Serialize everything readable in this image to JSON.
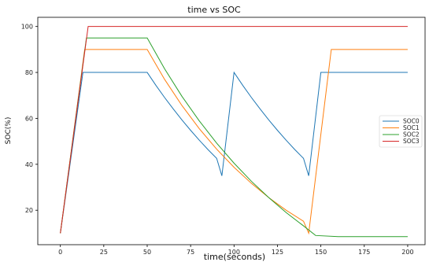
{
  "chart_data": {
    "type": "line",
    "title": "time vs SOC",
    "xlabel": "time(seconds)",
    "ylabel": "SOC(%)",
    "xlim": [
      -13,
      210
    ],
    "ylim": [
      5,
      104
    ],
    "x_ticks": [
      0,
      25,
      50,
      75,
      100,
      125,
      150,
      175,
      200
    ],
    "y_ticks": [
      20,
      40,
      60,
      80,
      100
    ],
    "grid": false,
    "legend_position": "center-right",
    "series": [
      {
        "name": "SOC0",
        "color": "#1f77b4",
        "points": [
          [
            0,
            10
          ],
          [
            13,
            80
          ],
          [
            50,
            80
          ],
          [
            55,
            74.4
          ],
          [
            60,
            69.1
          ],
          [
            65,
            64.1
          ],
          [
            70,
            59.3
          ],
          [
            75,
            54.8
          ],
          [
            80,
            50.5
          ],
          [
            85,
            46.4
          ],
          [
            90,
            42.6
          ],
          [
            93,
            35
          ],
          [
            100,
            80
          ],
          [
            105,
            74.4
          ],
          [
            110,
            69.1
          ],
          [
            115,
            64.1
          ],
          [
            120,
            59.3
          ],
          [
            125,
            54.8
          ],
          [
            130,
            50.5
          ],
          [
            135,
            46.4
          ],
          [
            140,
            42.6
          ],
          [
            143,
            35
          ],
          [
            150,
            80
          ],
          [
            200,
            80
          ]
        ]
      },
      {
        "name": "SOC1",
        "color": "#ff7f0e",
        "points": [
          [
            0,
            10
          ],
          [
            14,
            90
          ],
          [
            50,
            90
          ],
          [
            60,
            77
          ],
          [
            70,
            65.6
          ],
          [
            80,
            55.5
          ],
          [
            90,
            46.6
          ],
          [
            100,
            38.7
          ],
          [
            110,
            31.7
          ],
          [
            120,
            25.5
          ],
          [
            130,
            20
          ],
          [
            140,
            15.2
          ],
          [
            143,
            10
          ],
          [
            156,
            90
          ],
          [
            200,
            90
          ]
        ]
      },
      {
        "name": "SOC2",
        "color": "#2ca02c",
        "points": [
          [
            0,
            10
          ],
          [
            15,
            95
          ],
          [
            50,
            95
          ],
          [
            60,
            81.6
          ],
          [
            70,
            69.6
          ],
          [
            80,
            58.9
          ],
          [
            90,
            49.2
          ],
          [
            100,
            40.5
          ],
          [
            110,
            32.6
          ],
          [
            120,
            25.5
          ],
          [
            130,
            19
          ],
          [
            140,
            13.2
          ],
          [
            147,
            9
          ],
          [
            160,
            8.5
          ],
          [
            200,
            8.5
          ]
        ]
      },
      {
        "name": "SOC3",
        "color": "#d62728",
        "points": [
          [
            0,
            10
          ],
          [
            16,
            100
          ],
          [
            200,
            100
          ]
        ]
      }
    ]
  }
}
